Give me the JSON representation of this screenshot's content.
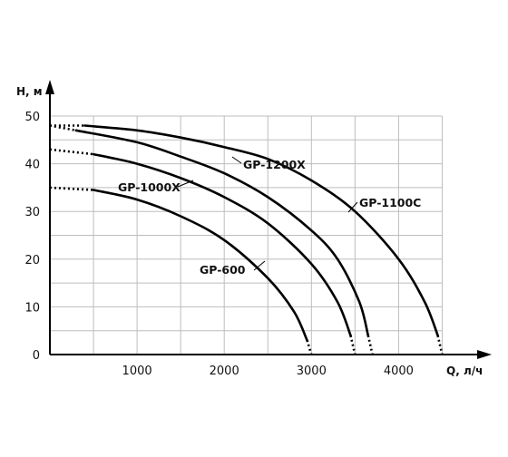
{
  "chart_data": {
    "type": "line",
    "xlabel": "Q, л/ч",
    "ylabel": "H, м",
    "xlim": [
      0,
      4500
    ],
    "ylim": [
      0,
      50
    ],
    "x_ticks": [
      "1000",
      "2000",
      "3000",
      "4000"
    ],
    "y_ticks": [
      "0",
      "10",
      "20",
      "30",
      "40",
      "50"
    ],
    "grid": true,
    "series": [
      {
        "name": "GP-600",
        "x": [
          0,
          500,
          1000,
          1500,
          2000,
          2500,
          2800,
          2950,
          3000
        ],
        "y": [
          35,
          34.5,
          32.5,
          29,
          24,
          16,
          9,
          3,
          0
        ]
      },
      {
        "name": "GP-1000X",
        "x": [
          0,
          500,
          1000,
          1500,
          2000,
          2500,
          3000,
          3300,
          3450,
          3500
        ],
        "y": [
          43,
          42,
          40,
          37,
          33,
          27.5,
          19,
          11,
          4,
          0
        ]
      },
      {
        "name": "GP-1200X",
        "x": [
          0,
          300,
          1000,
          1500,
          2000,
          2500,
          3000,
          3300,
          3550,
          3650,
          3700
        ],
        "y": [
          48,
          47,
          44.5,
          41.5,
          38,
          33,
          26,
          20,
          11,
          4,
          0
        ]
      },
      {
        "name": "GP-1100C",
        "x": [
          0,
          400,
          1000,
          1500,
          2000,
          2500,
          3000,
          3500,
          4000,
          4300,
          4450,
          4500
        ],
        "y": [
          48,
          48,
          47,
          45.5,
          43.5,
          41,
          36.5,
          30,
          20,
          11,
          4,
          0
        ]
      }
    ]
  }
}
